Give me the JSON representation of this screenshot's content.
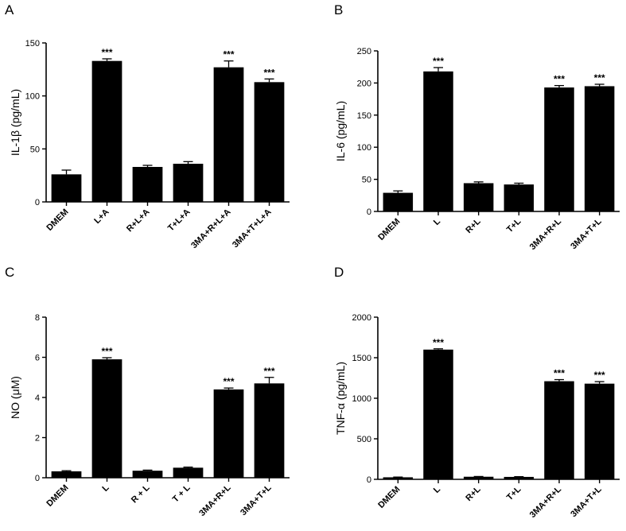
{
  "colors": {
    "bar": "#000000",
    "axis": "#000000",
    "background": "#ffffff"
  },
  "chart_data": [
    {
      "panel": "A",
      "type": "bar",
      "ylabel": "IL-1β (pg/mL)",
      "categories": [
        "DMEM",
        "L+A",
        "R+L+A",
        "T+L+A",
        "3MA+R+L+A",
        "3MA+T+L+A"
      ],
      "values": [
        26,
        133,
        33,
        36,
        127,
        113
      ],
      "errors": [
        4,
        2,
        1.5,
        2,
        6,
        3
      ],
      "significance": [
        "",
        "***",
        "",
        "",
        "***",
        "***"
      ],
      "ylim": [
        0,
        150
      ],
      "yticks": [
        0,
        50,
        100,
        150
      ],
      "ytick_labels": [
        "0",
        "50",
        "100",
        "150"
      ]
    },
    {
      "panel": "B",
      "type": "bar",
      "ylabel": "IL-6 (pg/mL)",
      "categories": [
        "DMEM",
        "L",
        "R+L",
        "T+L",
        "3MA+R+L",
        "3MA+T+L"
      ],
      "values": [
        29,
        218,
        44,
        42,
        193,
        195
      ],
      "errors": [
        3,
        6,
        2,
        2,
        3,
        3
      ],
      "significance": [
        "",
        "***",
        "",
        "",
        "***",
        "***"
      ],
      "ylim": [
        0,
        250
      ],
      "yticks": [
        0,
        50,
        100,
        150,
        200,
        250
      ],
      "ytick_labels": [
        "0",
        "50",
        "100",
        "150",
        "200",
        "250"
      ]
    },
    {
      "panel": "C",
      "type": "bar",
      "ylabel": "NO (μM)",
      "categories": [
        "DMEM",
        "L",
        "R + L",
        "T + L",
        "3MA+R+L",
        "3MA+T+L"
      ],
      "values": [
        0.32,
        5.9,
        0.35,
        0.5,
        4.4,
        4.7
      ],
      "errors": [
        0.03,
        0.08,
        0.03,
        0.03,
        0.07,
        0.3
      ],
      "significance": [
        "",
        "***",
        "",
        "",
        "***",
        "***"
      ],
      "ylim": [
        0,
        8
      ],
      "yticks": [
        0,
        2,
        4,
        6,
        8
      ],
      "ytick_labels": [
        "0",
        "2",
        "4",
        "6",
        "8"
      ]
    },
    {
      "panel": "D",
      "type": "bar",
      "ylabel": "TNF-α (pg/mL)",
      "categories": [
        "DMEM",
        "L",
        "R+L",
        "T+L",
        "3MA+R+L",
        "3MA+T+L"
      ],
      "values": [
        25,
        1600,
        32,
        30,
        1210,
        1180
      ],
      "errors": [
        3,
        10,
        3,
        3,
        20,
        25
      ],
      "significance": [
        "",
        "***",
        "",
        "",
        "***",
        "***"
      ],
      "ylim": [
        0,
        2000
      ],
      "yticks": [
        0,
        500,
        1000,
        1500,
        2000
      ],
      "ytick_labels": [
        "0",
        "500",
        "1000",
        "1500",
        "2000"
      ]
    }
  ]
}
